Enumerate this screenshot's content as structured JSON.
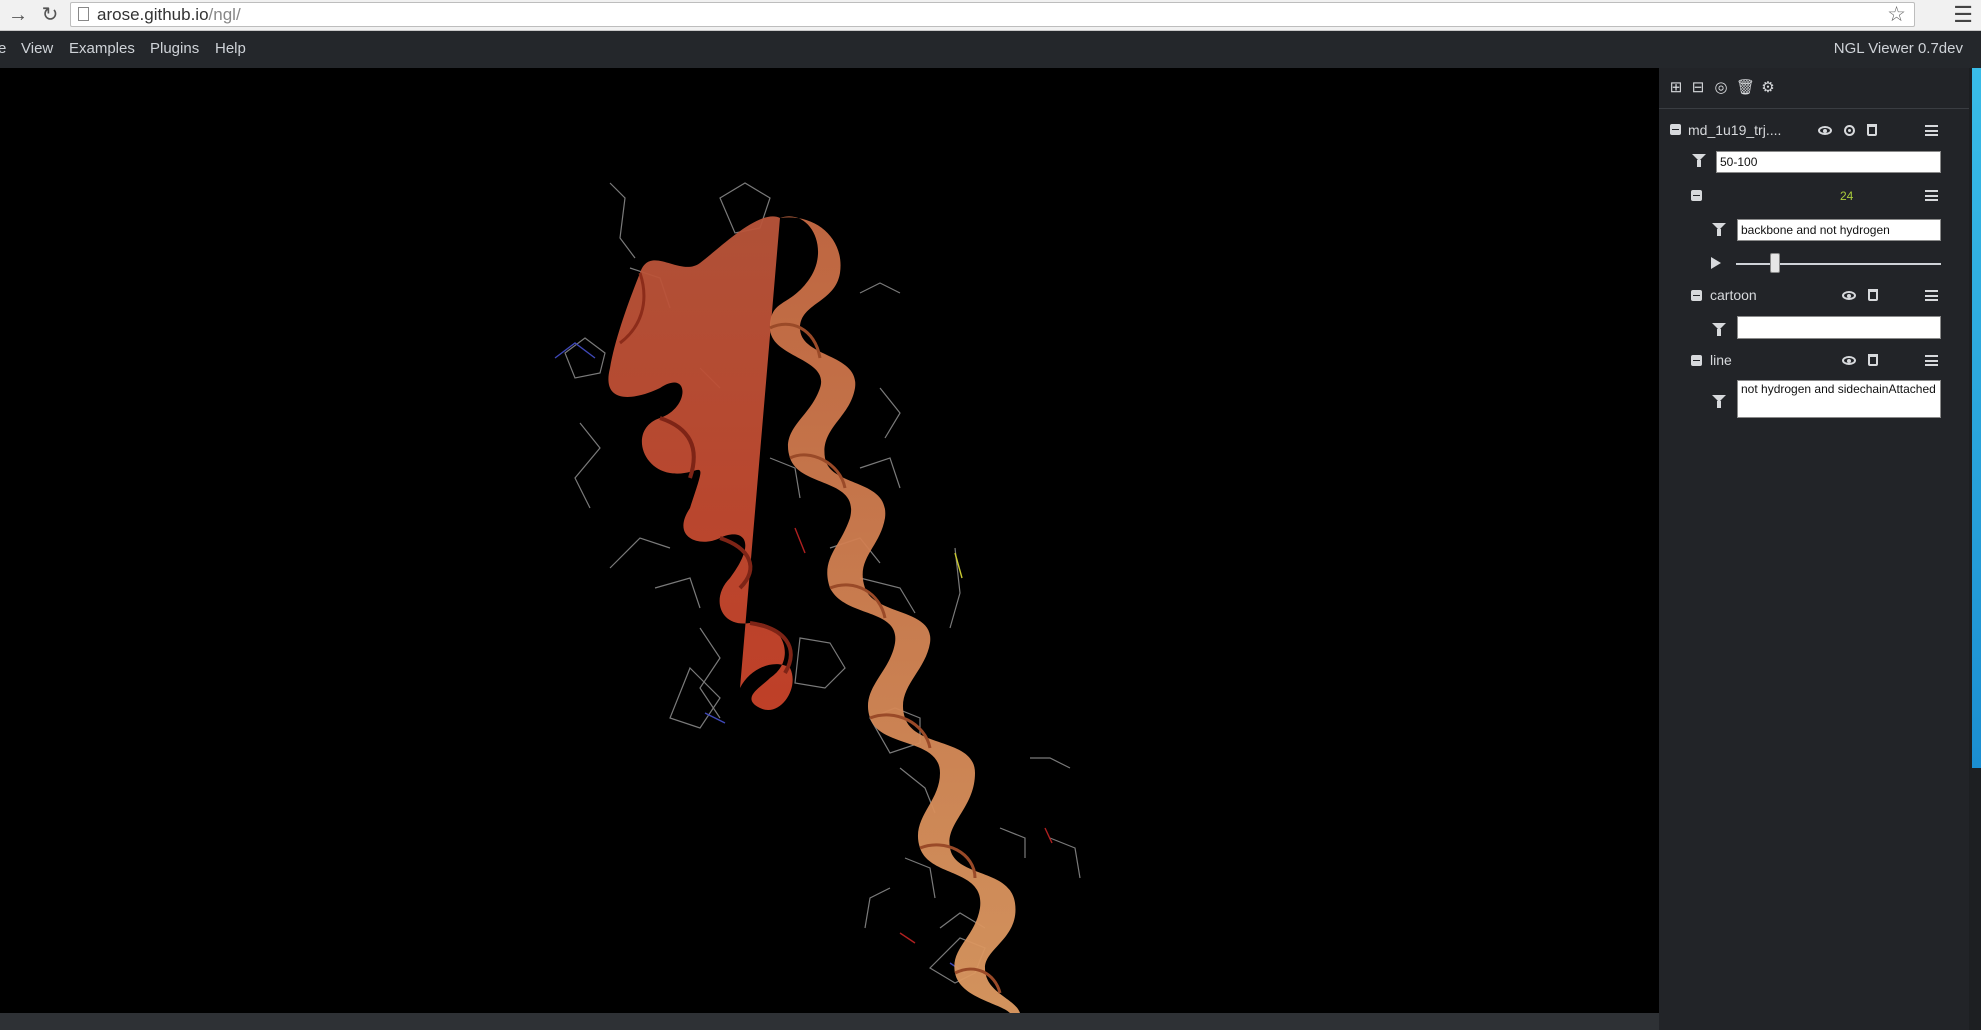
{
  "browser": {
    "url_host": "arose.github.io",
    "url_path": "/ngl/"
  },
  "menubar": {
    "items": [
      "e",
      "View",
      "Examples",
      "Plugins",
      "Help"
    ],
    "app_title": "NGL Viewer 0.7dev"
  },
  "sidebar": {
    "toolbar_icons": [
      "plus-square-icon",
      "minus-square-icon",
      "bullseye-icon",
      "trash-icon",
      "cogs-icon"
    ],
    "component": {
      "name": "md_1u19_trj....",
      "filter_value": "50-100",
      "trajectory": {
        "frame_count": "24",
        "selection_value": "backbone and not hydrogen",
        "slider_position": 0.19
      },
      "representations": [
        {
          "name": "cartoon",
          "selection_value": ""
        },
        {
          "name": "line",
          "selection_value": "not hydrogen and sidechainAttached"
        }
      ]
    }
  },
  "colors": {
    "viewport_bg": "#000000",
    "panel_bg": "#222428",
    "menubar_bg": "#24272b",
    "ribbon_dark": "#c0442a",
    "ribbon_light": "#d98e55",
    "frame_count": "#a9cc3b"
  }
}
